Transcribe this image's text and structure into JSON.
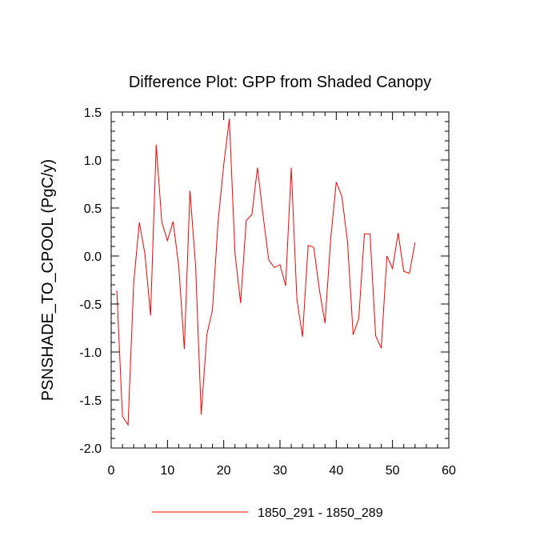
{
  "chart_data": {
    "type": "line",
    "title": "Difference Plot: GPP from Shaded Canopy",
    "xlabel": "",
    "ylabel": "PSNSHADE_TO_CPOOL  (PgC/y)",
    "xlim": [
      0,
      60
    ],
    "ylim": [
      -2.0,
      1.5
    ],
    "x_ticks": [
      0,
      10,
      20,
      30,
      40,
      50,
      60
    ],
    "x_tick_labels": [
      "0",
      "10",
      "20",
      "30",
      "40",
      "50",
      "60"
    ],
    "y_ticks": [
      -2.0,
      -1.5,
      -1.0,
      -0.5,
      0.0,
      0.5,
      1.0,
      1.5
    ],
    "y_tick_labels": [
      "-2.0",
      "-1.5",
      "-1.0",
      "-0.5",
      "0.0",
      "0.5",
      "1.0",
      "1.5"
    ],
    "grid": false,
    "legend_position": "bottom-center",
    "series": [
      {
        "name": "1850_291 - 1850_289",
        "color": "#ff0000",
        "x": [
          1,
          2,
          3,
          4,
          5,
          6,
          7,
          8,
          9,
          10,
          11,
          12,
          13,
          14,
          15,
          16,
          17,
          18,
          19,
          20,
          21,
          22,
          23,
          24,
          25,
          26,
          27,
          28,
          29,
          30,
          31,
          32,
          33,
          34,
          35,
          36,
          37,
          38,
          39,
          40,
          41,
          42,
          43,
          44,
          45,
          46,
          47,
          48,
          49,
          50,
          51,
          52,
          53,
          54
        ],
        "y": [
          -0.36,
          -1.67,
          -1.76,
          -0.28,
          0.35,
          0.02,
          -0.62,
          1.16,
          0.35,
          0.16,
          0.36,
          -0.1,
          -0.97,
          0.68,
          -0.1,
          -1.65,
          -0.82,
          -0.56,
          0.36,
          0.95,
          1.43,
          0.03,
          -0.49,
          0.37,
          0.43,
          0.92,
          0.42,
          -0.04,
          -0.12,
          -0.09,
          -0.31,
          0.92,
          -0.45,
          -0.84,
          0.11,
          0.09,
          -0.35,
          -0.7,
          0.17,
          0.77,
          0.62,
          0.15,
          -0.82,
          -0.65,
          0.23,
          0.23,
          -0.83,
          -0.96,
          0.0,
          -0.13,
          0.24,
          -0.16,
          -0.18,
          0.14
        ]
      }
    ]
  }
}
